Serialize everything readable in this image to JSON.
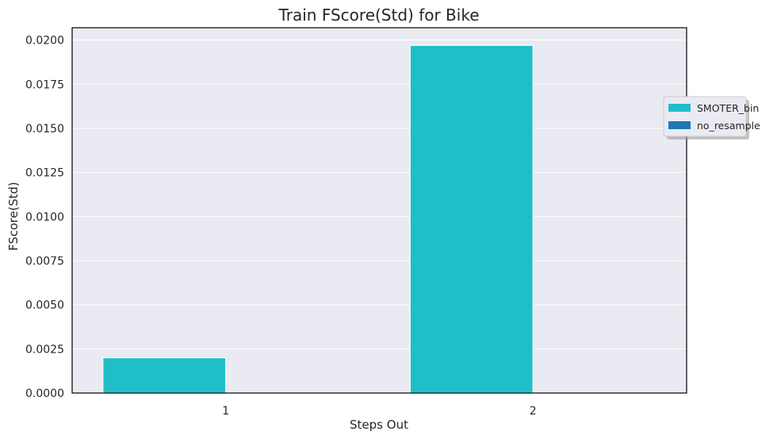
{
  "chart_data": {
    "type": "bar",
    "title": "Train FScore(Std) for Bike",
    "xlabel": "Steps Out",
    "ylabel": "FScore(Std)",
    "categories": [
      "1",
      "2"
    ],
    "series": [
      {
        "name": "SMOTER_bin",
        "values": [
          0.002,
          0.0197
        ],
        "color": "#1fbec8"
      },
      {
        "name": "no_resample",
        "values": [
          0.0,
          0.0
        ],
        "color": "#1f77b4"
      }
    ],
    "ylim": [
      0,
      0.0207
    ],
    "yticks": [
      "0.0000",
      "0.0025",
      "0.0050",
      "0.0075",
      "0.0100",
      "0.0125",
      "0.0150",
      "0.0175",
      "0.0200"
    ],
    "grid": true,
    "legend_position": "right",
    "background": "#eaeaf2"
  }
}
